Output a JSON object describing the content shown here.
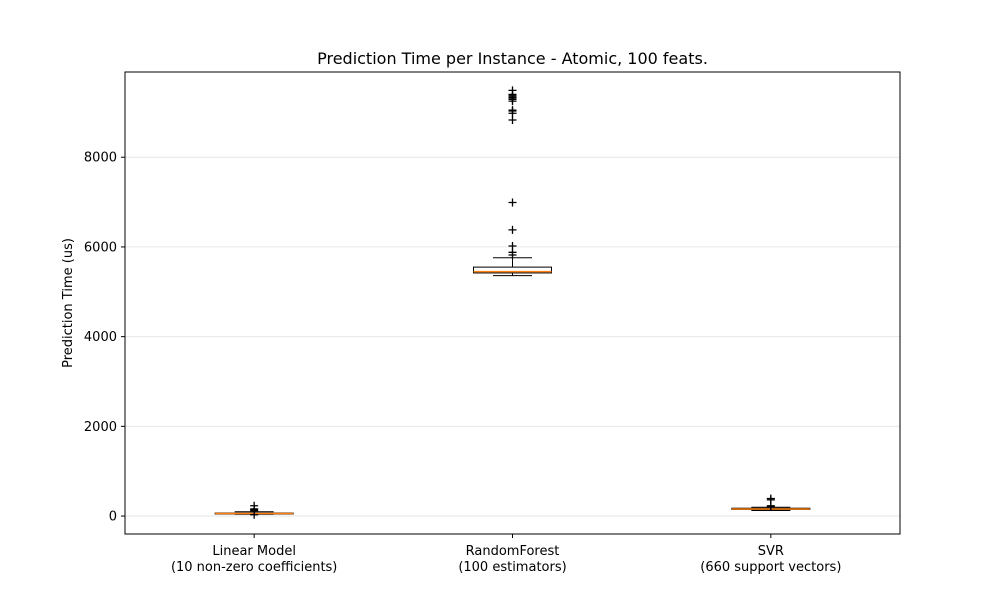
{
  "chart_data": {
    "type": "boxplot",
    "title": "Prediction Time per Instance - Atomic, 100 feats.",
    "xlabel": "",
    "ylabel": "Prediction Time (us)",
    "ylim": [
      -400,
      9900
    ],
    "yticks": [
      0,
      2000,
      4000,
      6000,
      8000
    ],
    "grid": "y-axis",
    "colors": {
      "box": "#000000",
      "median": "#ff7f0e",
      "grid": "#e6e6e6"
    },
    "categories": [
      {
        "line1": "Linear Model",
        "line2": "(10 non-zero coefficients)"
      },
      {
        "line1": "RandomForest",
        "line2": "(100 estimators)"
      },
      {
        "line1": "SVR",
        "line2": "(660 support vectors)"
      }
    ],
    "series": [
      {
        "name": "Linear Model",
        "whisker_low": 40,
        "q1": 52,
        "median": 58,
        "q3": 68,
        "whisker_high": 95,
        "outliers": [
          30,
          120,
          140,
          160,
          230
        ]
      },
      {
        "name": "RandomForest",
        "whisker_low": 5360,
        "q1": 5420,
        "median": 5450,
        "q3": 5550,
        "whisker_high": 5760,
        "outliers": [
          5820,
          5880,
          6020,
          6380,
          6990,
          8830,
          8980,
          9030,
          9050,
          9250,
          9290,
          9320,
          9340,
          9370,
          9400,
          9490
        ]
      },
      {
        "name": "SVR",
        "whisker_low": 125,
        "q1": 148,
        "median": 158,
        "q3": 175,
        "whisker_high": 195,
        "outliers": [
          210,
          230,
          360,
          390
        ]
      }
    ]
  }
}
